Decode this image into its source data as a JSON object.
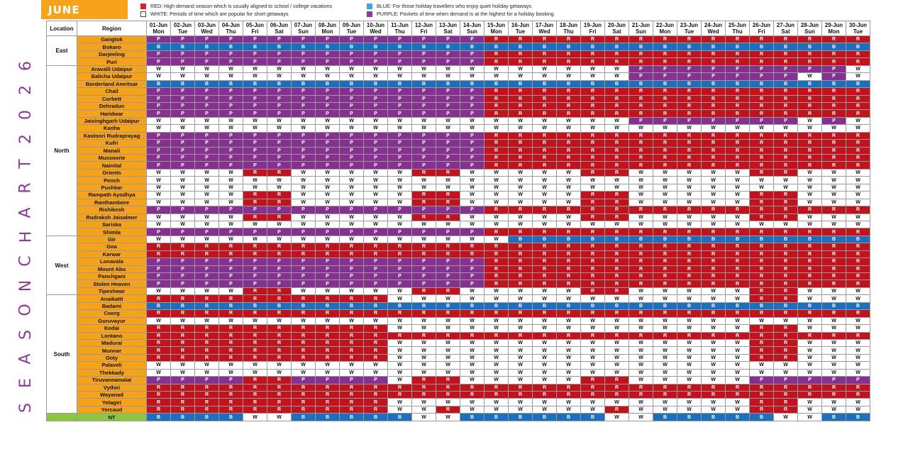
{
  "month": "JUNE",
  "vertical_title": "SEASON CHART 2026",
  "legend": [
    {
      "code": "R",
      "text": "RED: High demand season which is usually aligned to school / college vacations"
    },
    {
      "code": "W",
      "text": "WHITE: Periods of time which are popular for short getaways"
    },
    {
      "code": "B",
      "text": "BLUE: For those holiday travellers who enjoy quiet holiday getaways"
    },
    {
      "code": "P",
      "text": "PURPLE: Pockets of time when demand is at the highest for a holiday booking"
    }
  ],
  "colors": {
    "R": "#c0131d",
    "P": "#86308f",
    "B": "#1c6fbf",
    "W": "#ffffff",
    "destination_bg": "#f7a21b",
    "nt_bg": "#8cc63f",
    "title_color": "#8e3a98"
  },
  "header": {
    "location": "Location",
    "region": "Region"
  },
  "dates": [
    {
      "date": "01-Jun",
      "day": "Mon"
    },
    {
      "date": "02-Jun",
      "day": "Tue"
    },
    {
      "date": "03-Jun",
      "day": "Wed"
    },
    {
      "date": "04-Jun",
      "day": "Thu"
    },
    {
      "date": "05-Jun",
      "day": "Fri"
    },
    {
      "date": "06-Jun",
      "day": "Sat"
    },
    {
      "date": "07-Jun",
      "day": "Sun"
    },
    {
      "date": "08-Jun",
      "day": "Mon"
    },
    {
      "date": "09-Jun",
      "day": "Tue"
    },
    {
      "date": "10-Jun",
      "day": "Wed"
    },
    {
      "date": "11-Jun",
      "day": "Thu"
    },
    {
      "date": "12-Jun",
      "day": "Fri"
    },
    {
      "date": "13-Jun",
      "day": "Sat"
    },
    {
      "date": "14-Jun",
      "day": "Sun"
    },
    {
      "date": "15-Jun",
      "day": "Mon"
    },
    {
      "date": "16-Jun",
      "day": "Tue"
    },
    {
      "date": "17-Jun",
      "day": "Wed"
    },
    {
      "date": "18-Jun",
      "day": "Thu"
    },
    {
      "date": "19-Jun",
      "day": "Fri"
    },
    {
      "date": "20-Jun",
      "day": "Sat"
    },
    {
      "date": "21-Jun",
      "day": "Sun"
    },
    {
      "date": "22-Jun",
      "day": "Mon"
    },
    {
      "date": "23-Jun",
      "day": "Tue"
    },
    {
      "date": "24-Jun",
      "day": "Wed"
    },
    {
      "date": "25-Jun",
      "day": "Thu"
    },
    {
      "date": "26-Jun",
      "day": "Fri"
    },
    {
      "date": "27-Jun",
      "day": "Sat"
    },
    {
      "date": "28-Jun",
      "day": "Sun"
    },
    {
      "date": "29-Jun",
      "day": "Mon"
    },
    {
      "date": "30-Jun",
      "day": "Tue"
    }
  ],
  "groups": [
    {
      "location": "East",
      "rows": [
        {
          "name": "Gangtok",
          "cells": "PPPPPPPPPPPPPPRRRRRRRRRRRRRRRR"
        },
        {
          "name": "Bokaro",
          "cells": "BBBBBBBBBBBBBBBBBBBBBBBBBBBBBB"
        },
        {
          "name": "Darjeeling",
          "cells": "PPPPPPPPPPPPPPRRRRRRRRRRRRRRRR"
        },
        {
          "name": "Puri",
          "cells": "PPPPPPPPPPPPPPRRRRRRRRRRRRRRRR"
        }
      ]
    },
    {
      "location": "North",
      "rows": [
        {
          "name": "Aravalli Udaipur",
          "cells": "WWWWWWWWWWWWWWWWWWWWPPPPPPPPPW"
        },
        {
          "name": "Balicha Udaipur",
          "cells": "WWWWWWWWWWWWWWWWWWWWPPPPPPPWPW"
        },
        {
          "name": "Borderland Amritsar",
          "cells": "BBBBBBBBBBBBBBBBBBBBBBBBBBBBBB"
        },
        {
          "name": "Chail",
          "cells": "PPPPPPPPPPPPPPRRRRRRRRRRRRRRRR"
        },
        {
          "name": "Corbett",
          "cells": "PPPPPPPPPPPPPPRRRRRRRRRRRRRRRR"
        },
        {
          "name": "Dehradun",
          "cells": "PPPPPPPPPPPPPPRRRRRRRRRRRRRRRR"
        },
        {
          "name": "Haridwar",
          "cells": "PPPPPPPPPPPPPPRRRRRRRRRRRRRRRR"
        },
        {
          "name": "Jaisinghgarh Udaipur",
          "cells": "WWWWWWWWWWWWWWWWWWWWPPPPPPPWPW"
        },
        {
          "name": "Kanha",
          "cells": "WWWWWWWWWWWWWWWWWWWWWWWWWWWWWW"
        },
        {
          "name": "Kastoori Rudraprayag",
          "cells": "PPPPPPPPPPPPPPRRRRRRRRRRRRRRRR"
        },
        {
          "name": "Kufri",
          "cells": "PPPPPPPPPPPPPPRRRRRRRRRRRRRRRR"
        },
        {
          "name": "Manali",
          "cells": "PPPPPPPPPPPPPPRRRRRRRRRRRRRRRR"
        },
        {
          "name": "Mussoorie",
          "cells": "PPPPPPPPPPPPPPRRRRRRRRRRRRRRRR"
        },
        {
          "name": "Nainital",
          "cells": "PPPPPPPPPPPPPPRRRRRRRRRRRRRRRR"
        },
        {
          "name": "Orients",
          "cells": "WWWWRRWWWWWRRWWWWWRRWWWWWRRWWW"
        },
        {
          "name": "Pench",
          "cells": "WWWWWWWWWWWWWWWWWWWWWWWWWWWWWW"
        },
        {
          "name": "Pushkar",
          "cells": "WWWWWWWWWWWWWWWWWWWWWWWWWWWWWW"
        },
        {
          "name": "Rampath Ayodhya",
          "cells": "WWWWRRWWWWWRRWWWWWRRWWWWWRRWWW"
        },
        {
          "name": "Ranthambore",
          "cells": "WWWWRRWWWWWRRWWWWWRRWWWWWRRWWW"
        },
        {
          "name": "Rishikesh",
          "cells": "PPPPPPPPPPPPPPRRRRRRRRRRRRRRRR"
        },
        {
          "name": "Rudraksh Jaisalmer",
          "cells": "WWWWRRWWWWWRRWWWWWRRWWWWWRRWWW"
        },
        {
          "name": "Sariska",
          "cells": "WWWWWWWWWWWWWWWWWWWWWWWWWWWWWW"
        },
        {
          "name": "Shimla",
          "cells": "PPPPPPPPPPPPPPRRRRRRRRRRRRRRRR"
        }
      ]
    },
    {
      "location": "West",
      "rows": [
        {
          "name": "Gir",
          "cells": "WWWWWWWWWWWWWWWBBBBBBBBBBBBBBB"
        },
        {
          "name": "Goa",
          "cells": "RRRRRRRRRRRRRRRRRRRRRRRRRRRRRR"
        },
        {
          "name": "Karwar",
          "cells": "RRRRRRRRRRRRRRRRRRRRRRRRRRRRRR"
        },
        {
          "name": "Lonavala",
          "cells": "PPPPPPPPPPPPPPRRRRRRRRRRRRRRRR"
        },
        {
          "name": "Mount Abu",
          "cells": "PPPPPPPPPPPPPPRRRRRRRRRRRRRRRR"
        },
        {
          "name": "Panchgani",
          "cells": "PPPPPPPPPPPPPPRRRRRRRRRRRRRRRR"
        },
        {
          "name": "Stolen Heaven",
          "cells": "PPPPPPPPPPPPPPRRRRRRRRRRRRRRRR"
        },
        {
          "name": "Tipeshwar",
          "cells": "WWWWRRWWWWWRRWWWWWRRWWWWWRRWWW"
        }
      ]
    },
    {
      "location": "South",
      "rows": [
        {
          "name": "Anaikatti",
          "cells": "RRRRRRRRRRWWWWWWWWWWWWWWWRRWWW"
        },
        {
          "name": "Badami",
          "cells": "BBBBBBBBBBBBBBBBBBBBBBBBBBBBBB"
        },
        {
          "name": "Coorg",
          "cells": "RRRRRRRRRRRRRRRRRRRRRRRRRRRRRR"
        },
        {
          "name": "Guruvayur",
          "cells": "WWWWWWWWWWWWWWWWWWWWWWWWWWWWWW"
        },
        {
          "name": "Kodai",
          "cells": "RRRRRRRRRRWWWWWWWWWWWWWWWRRWWW"
        },
        {
          "name": "Lontano",
          "cells": "RRRRRRRRRRRRRRRRRRRRRRRRRRRRRR"
        },
        {
          "name": "Madurai",
          "cells": "RRRRRRRRRRWWWWWWWWWWWWWWWRRWWW"
        },
        {
          "name": "Munnar",
          "cells": "RRRRRRRRRRWWWWWWWWWWWWWWWRRWWW"
        },
        {
          "name": "Ooty",
          "cells": "RRRRRRRRRRWWWWWWWWWWWWWWWRRWWW"
        },
        {
          "name": "Palaveli",
          "cells": "WWWWWWWWWWWWWWWWWWWWWWWWWWWWWW"
        },
        {
          "name": "Thekkady",
          "cells": "WWWWWWWWWWWWWWWWWWWWWWWWWWWWWW"
        },
        {
          "name": "Tiruvannamalai",
          "cells": "PPPPRRPPPPWRRWWWWWRRWWWWWPPPPP"
        },
        {
          "name": "Vythiri",
          "cells": "RRRRRRRRRRRRRRRRRRRRRRRRRRRRRR"
        },
        {
          "name": "Wayanad",
          "cells": "RRRRRRRRRRRRRRRRRRRRRRRRRRRRRR"
        },
        {
          "name": "Yelagiri",
          "cells": "RRRRRRRRRRWWWWWWWWWWWWWWWRRWWW"
        },
        {
          "name": "Yercaud",
          "cells": "RRRRRRRRRRWWRWWWWWWRWWWWWRRWWW"
        }
      ]
    },
    {
      "location": "",
      "nt": true,
      "rows": [
        {
          "name": "NT",
          "cells": "BBBBWWBBBBBWWBBBBBBWWBBBBBWWBB"
        }
      ]
    }
  ]
}
